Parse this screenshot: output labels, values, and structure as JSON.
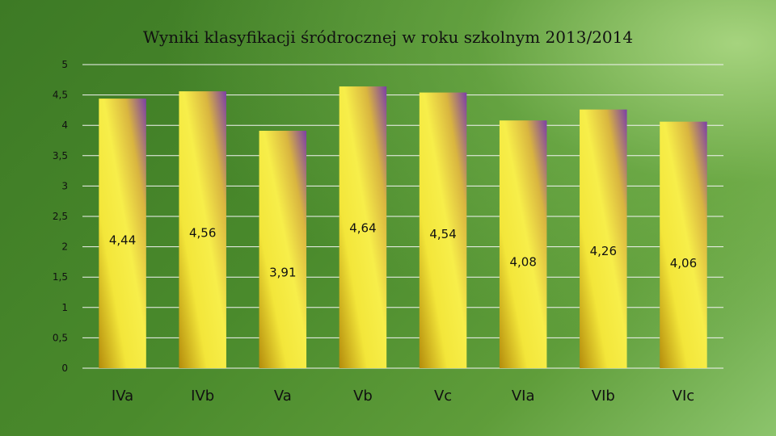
{
  "chart_data": {
    "type": "bar",
    "title": "Wyniki klasyfikacji śródrocznej w roku szkolnym 2013/2014",
    "categories": [
      "IVa",
      "IVb",
      "Va",
      "Vb",
      "Vc",
      "VIa",
      "VIb",
      "VIc"
    ],
    "values": [
      4.44,
      4.56,
      3.91,
      4.64,
      4.54,
      4.08,
      4.26,
      4.06
    ],
    "data_labels": [
      "4,44",
      "4,56",
      "3,91",
      "4,64",
      "4,54",
      "4,08",
      "4,26",
      "4,06"
    ],
    "ylim": [
      0,
      5
    ],
    "y_ticks": [
      0,
      0.5,
      1,
      1.5,
      2,
      2.5,
      3,
      3.5,
      4,
      4.5,
      5
    ],
    "y_tick_labels": [
      "0",
      "0,5",
      "1",
      "1,5",
      "2",
      "2,5",
      "3",
      "3,5",
      "4",
      "4,5",
      "5"
    ],
    "grid": true,
    "colors": {
      "bar_gold": "#c9a012",
      "bar_yellow": "#f7ee4a",
      "bar_purple": "#7b3fa8",
      "grid": "#f4f4f4"
    }
  }
}
